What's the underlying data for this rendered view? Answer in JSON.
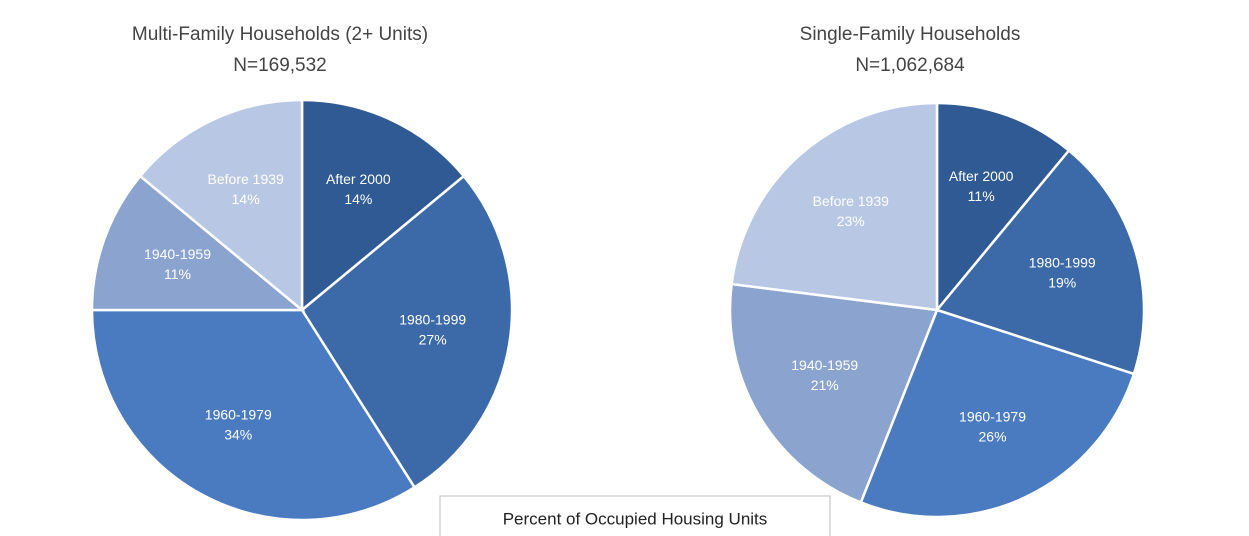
{
  "chart_data": [
    {
      "type": "pie",
      "title": "Multi-Family Households (2+ Units)",
      "subtitle": "N=169,532",
      "categories": [
        "After 2000",
        "1980-1999",
        "1960-1979",
        "1940-1959",
        "Before 1939"
      ],
      "values": [
        14,
        27,
        34,
        11,
        14
      ],
      "value_labels": [
        "14%",
        "27%",
        "34%",
        "11%",
        "14%"
      ],
      "colors": [
        "#2f5a93",
        "#3c69a8",
        "#4a7bc0",
        "#8aa3cf",
        "#b8c7e3"
      ]
    },
    {
      "type": "pie",
      "title": "Single-Family Households",
      "subtitle": "N=1,062,684",
      "categories": [
        "After 2000",
        "1980-1999",
        "1960-1979",
        "1940-1959",
        "Before 1939"
      ],
      "values": [
        11,
        19,
        26,
        21,
        23
      ],
      "value_labels": [
        "11%",
        "19%",
        "26%",
        "21%",
        "23%"
      ],
      "colors": [
        "#2f5a93",
        "#3c69a8",
        "#4a7bc0",
        "#8aa3cf",
        "#b8c7e3"
      ]
    }
  ],
  "caption": "Percent of Occupied Housing Units"
}
